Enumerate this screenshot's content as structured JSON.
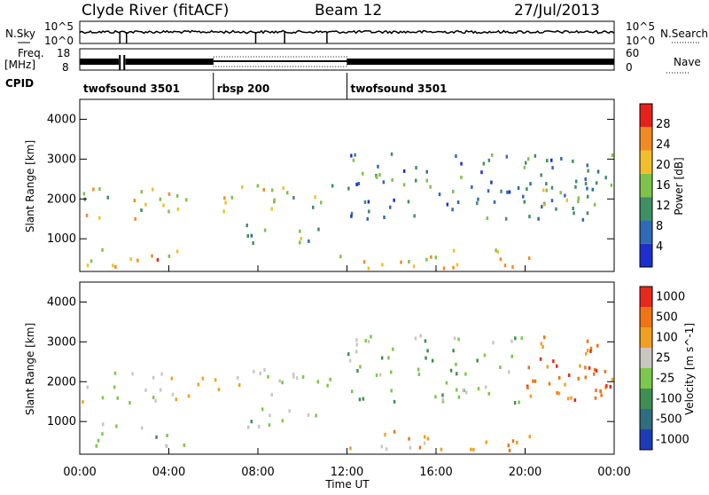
{
  "header": {
    "station": "Clyde River (fitACF)",
    "beam": "Beam 12",
    "date": "27/Jul/2013"
  },
  "top_panel": {
    "left_label": "N.Sky",
    "right_label": "N.Search",
    "left_ticks": [
      "10^5",
      "10^0"
    ],
    "right_ticks": [
      "10^5",
      "10^0"
    ]
  },
  "freq_panel": {
    "left_label_1": "Freq.",
    "left_label_2": "[MHz]",
    "left_ticks": [
      "18",
      "8"
    ],
    "right_ticks": [
      "60",
      "0"
    ],
    "right_label": "Nave"
  },
  "cpid": {
    "label": "CPID",
    "segments": [
      {
        "name": "twofsound 3501",
        "start_hour": 0,
        "end_hour": 6
      },
      {
        "name": "rbsp 200",
        "start_hour": 6,
        "end_hour": 12
      },
      {
        "name": "twofsound 3501",
        "start_hour": 12,
        "end_hour": 24
      }
    ]
  },
  "chart_data": [
    {
      "type": "heatmap",
      "title": "Power",
      "ylabel": "Slant Range [km]",
      "ylim": [
        180,
        4500
      ],
      "y_ticks": [
        "1000",
        "2000",
        "3000",
        "4000"
      ],
      "colorbar_label": "Power [dB]",
      "colorbar_ticks": [
        "4",
        "8",
        "12",
        "16",
        "20",
        "24",
        "28"
      ],
      "colorbar_range": [
        0,
        30
      ],
      "colors": [
        "#1e2fd0",
        "#2f6ab4",
        "#3f8f64",
        "#7fc24a",
        "#f0c02c",
        "#f28a22",
        "#e6211a"
      ]
    },
    {
      "type": "heatmap",
      "title": "Velocity",
      "ylabel": "Slant Range [km]",
      "xlabel": "Time UT",
      "ylim": [
        180,
        4500
      ],
      "y_ticks": [
        "1000",
        "2000",
        "3000",
        "4000"
      ],
      "x_ticks": [
        "00:00",
        "04:00",
        "08:00",
        "12:00",
        "16:00",
        "20:00",
        "00:00"
      ],
      "xlim_hours": [
        0,
        24
      ],
      "colorbar_label": "Velocity [m s^-1]",
      "colorbar_ticks": [
        "1000",
        "500",
        "100",
        "25",
        "-25",
        "-100",
        "-500",
        "-1000"
      ],
      "colors": [
        "#1e3cb8",
        "#2f6e7e",
        "#3f8f52",
        "#7cc84a",
        "#c8c8c0",
        "#f0a020",
        "#f07414",
        "#e8281c"
      ]
    }
  ]
}
